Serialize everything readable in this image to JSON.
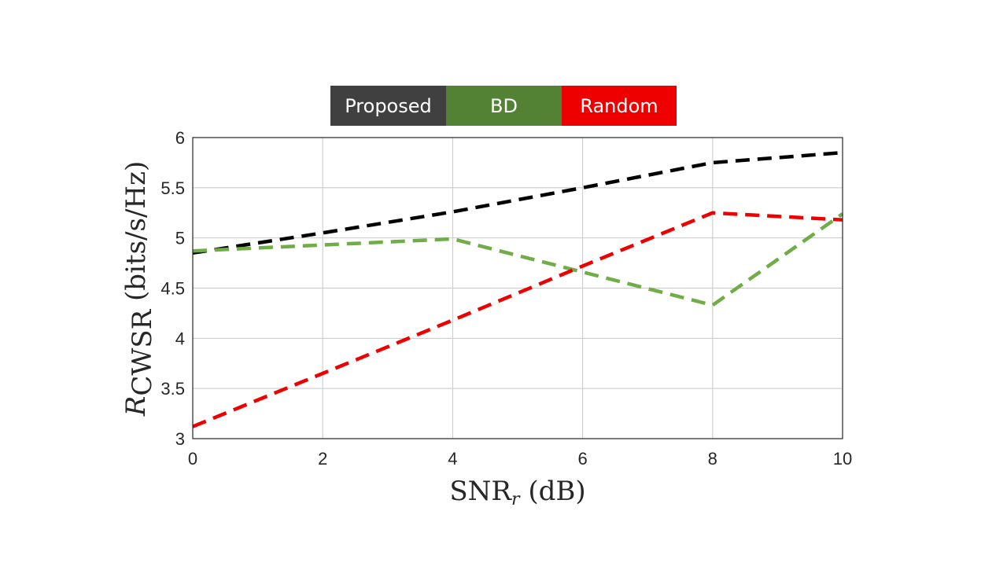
{
  "legend": {
    "items": [
      {
        "label": "Proposed",
        "color": "#404040"
      },
      {
        "label": "BD",
        "color": "#548235"
      },
      {
        "label": "Random",
        "color": "#ee0000"
      }
    ]
  },
  "chart_data": {
    "type": "line",
    "title": "",
    "xlabel_main": "SNR",
    "xlabel_sub": "r",
    "xlabel_unit": "(dB)",
    "ylabel_main": "R",
    "ylabel_sub": "CWSR",
    "ylabel_unit": "(bits/s/Hz)",
    "xlim": [
      0,
      10
    ],
    "ylim": [
      3,
      6
    ],
    "xticks": [
      0,
      2,
      4,
      6,
      8,
      10
    ],
    "yticks": [
      3,
      3.5,
      4,
      4.5,
      5,
      5.5,
      6
    ],
    "x": [
      0,
      2,
      4,
      6,
      8,
      10
    ],
    "grid": true,
    "line_style": "dashed",
    "series": [
      {
        "name": "Proposed",
        "color": "#000000",
        "values": [
          4.85,
          5.05,
          5.26,
          5.5,
          5.75,
          5.85
        ]
      },
      {
        "name": "BD",
        "color": "#70ad47",
        "values": [
          4.87,
          4.93,
          4.99,
          4.66,
          4.33,
          5.24
        ]
      },
      {
        "name": "Random",
        "color": "#ee0000",
        "values": [
          3.12,
          3.65,
          4.18,
          4.72,
          5.25,
          5.18
        ]
      }
    ]
  }
}
